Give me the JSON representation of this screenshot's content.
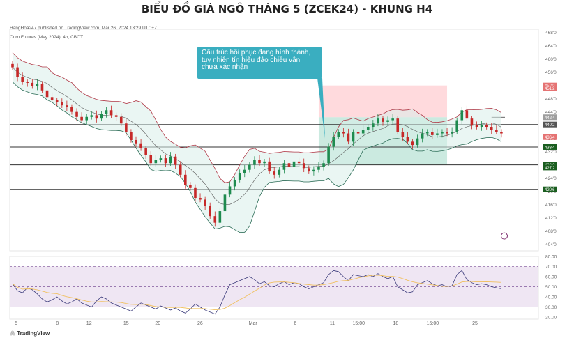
{
  "header": {
    "title": "BIỂU ĐỒ GIÁ NGÔ THÁNG 5 (ZCEK24) - KHUNG H4",
    "published": "HangHoa247 published on TradingView.com, Mar 26, 2024 13:29 UTC+7",
    "symbol": "Corn Futures (May 2024), 4h, CBOT",
    "logo": "TradingView"
  },
  "annotation": {
    "text": "Cấu trúc hồi phục đang hình thành, tuy nhiên tín hiệu đảo chiều vẫn chưa xác nhận"
  },
  "chart_data": [
    {
      "type": "candlestick",
      "x_labels": [
        "5",
        "8",
        "12",
        "15",
        "20",
        "26",
        "Mar",
        "6",
        "11",
        "15:00",
        "18",
        "15:00",
        "25"
      ],
      "y_ticks": [
        404,
        408,
        412,
        416,
        420,
        424,
        428,
        432,
        436,
        440,
        444,
        448,
        452,
        456,
        460,
        464,
        468
      ],
      "ylim": [
        402,
        469
      ],
      "price_labels": [
        {
          "value": 452.0,
          "text": "452'0",
          "color": "#e57373"
        },
        {
          "value": 451.2,
          "text": "451'2",
          "color": "#e57373"
        },
        {
          "value": 442.4,
          "text": "442'4",
          "color": "#9e9e9e"
        },
        {
          "value": 440.2,
          "text": "440'2",
          "color": "#555555"
        },
        {
          "value": 436.4,
          "text": "436'4",
          "color": "#e57373"
        },
        {
          "value": 433.4,
          "text": "433'4",
          "color": "#1b5e20"
        },
        {
          "value": 428.0,
          "text": "428'0",
          "color": "#1b5e20"
        },
        {
          "value": 427.2,
          "text": "427'2",
          "color": "#1b5e20"
        },
        {
          "value": 420.6,
          "text": "420'6",
          "color": "#1b5e20"
        }
      ],
      "horizontal_levels": [
        {
          "value": 451.2,
          "color": "#e57373"
        },
        {
          "value": 440.2,
          "color": "#333333"
        },
        {
          "value": 433.4,
          "color": "#333333"
        },
        {
          "value": 428.0,
          "color": "#333333"
        },
        {
          "value": 420.6,
          "color": "#333333"
        }
      ],
      "zones": [
        {
          "name": "stop",
          "from": 442.4,
          "to": 452.0,
          "color": "#ffcdd2"
        },
        {
          "name": "target",
          "from": 428.0,
          "to": 442.4,
          "color": "#b9e3d6"
        }
      ],
      "close_series": [
        457.5,
        454.5,
        453.0,
        452.8,
        451.8,
        452.5,
        450.5,
        448.5,
        447.5,
        447.0,
        446.0,
        445.5,
        444.0,
        442.5,
        441.5,
        442.5,
        443.0,
        442.0,
        443.5,
        444.5,
        443.0,
        442.5,
        440.5,
        438.0,
        435.5,
        434.5,
        433.0,
        431.0,
        428.5,
        429.5,
        430.0,
        428.5,
        430.5,
        428.0,
        425.0,
        422.0,
        421.0,
        418.0,
        417.5,
        415.5,
        412.5,
        410.5,
        414.0,
        419.0,
        421.5,
        423.5,
        425.5,
        426.5,
        428.0,
        429.5,
        428.5,
        429.0,
        426.0,
        425.0,
        426.5,
        428.5,
        427.5,
        429.0,
        428.5,
        427.0,
        426.0,
        426.5,
        427.5,
        428.5,
        433.5,
        436.5,
        438.0,
        437.5,
        435.0,
        438.0,
        437.5,
        438.5,
        439.5,
        440.5,
        442.0,
        441.0,
        441.5,
        442.0,
        438.0,
        436.5,
        435.0,
        434.0,
        436.0,
        437.5,
        438.0,
        437.0,
        437.5,
        438.0,
        437.5,
        438.0,
        441.5,
        444.5,
        442.0,
        440.0,
        439.5,
        440.0,
        439.5,
        438.5,
        438.0,
        437.5
      ]
    },
    {
      "type": "line",
      "name": "",
      "y_ticks": [
        20,
        30,
        40,
        50,
        60,
        70,
        80
      ],
      "ylim": [
        18,
        80
      ],
      "bands": [
        30,
        50,
        70
      ],
      "rsi": [
        53,
        46,
        44,
        49,
        47,
        43,
        38,
        35,
        37,
        40,
        36,
        33,
        35,
        38,
        34,
        32,
        30,
        36,
        40,
        38,
        34,
        32,
        30,
        28,
        26,
        30,
        34,
        32,
        30,
        28,
        31,
        29,
        27,
        29,
        26,
        24,
        28,
        33,
        30,
        27,
        25,
        23,
        30,
        42,
        52,
        54,
        56,
        58,
        60,
        57,
        53,
        55,
        51,
        50,
        53,
        55,
        52,
        54,
        53,
        50,
        48,
        50,
        52,
        54,
        62,
        66,
        65,
        60,
        56,
        62,
        61,
        60,
        62,
        60,
        63,
        60,
        58,
        60,
        50,
        47,
        44,
        45,
        52,
        54,
        56,
        53,
        51,
        52,
        50,
        51,
        62,
        66,
        57,
        54,
        52,
        53,
        52,
        50,
        49,
        48
      ]
    }
  ]
}
